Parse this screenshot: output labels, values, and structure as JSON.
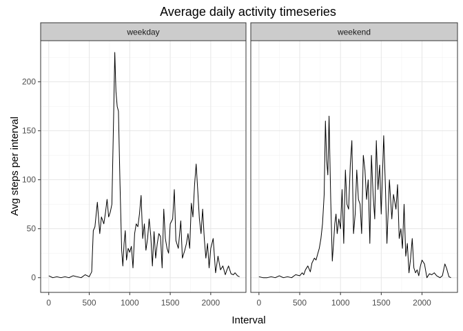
{
  "chart_data": {
    "type": "line",
    "title": "Average daily activity timeseries",
    "xlabel": "Interval",
    "ylabel": "Avg steps per interval",
    "xlim": [
      -100,
      2435
    ],
    "ylim": [
      -15,
      242
    ],
    "x_ticks": [
      0,
      500,
      1000,
      1500,
      2000
    ],
    "y_ticks": [
      0,
      50,
      100,
      150,
      200
    ],
    "grid": true,
    "line_color": "#000000",
    "facets": [
      {
        "label": "weekday",
        "x": [
          0,
          50,
          100,
          150,
          200,
          250,
          300,
          350,
          400,
          450,
          500,
          530,
          550,
          570,
          600,
          630,
          650,
          680,
          700,
          720,
          740,
          760,
          780,
          800,
          815,
          830,
          845,
          860,
          880,
          900,
          915,
          930,
          945,
          960,
          980,
          1000,
          1020,
          1040,
          1060,
          1080,
          1100,
          1120,
          1140,
          1160,
          1180,
          1200,
          1220,
          1240,
          1260,
          1280,
          1300,
          1320,
          1340,
          1360,
          1380,
          1400,
          1420,
          1440,
          1460,
          1480,
          1500,
          1530,
          1550,
          1570,
          1600,
          1630,
          1650,
          1680,
          1700,
          1720,
          1740,
          1760,
          1780,
          1800,
          1820,
          1840,
          1860,
          1880,
          1900,
          1920,
          1940,
          1960,
          1980,
          2000,
          2030,
          2060,
          2090,
          2120,
          2150,
          2180,
          2200,
          2220,
          2250,
          2280,
          2300,
          2330,
          2355
        ],
        "y": [
          2,
          0,
          1,
          0,
          1,
          0,
          2,
          1,
          0,
          3,
          1,
          6,
          48,
          52,
          77,
          45,
          62,
          55,
          66,
          80,
          62,
          67,
          75,
          160,
          230,
          190,
          175,
          170,
          95,
          28,
          12,
          35,
          48,
          18,
          30,
          26,
          32,
          10,
          45,
          55,
          52,
          65,
          84,
          40,
          55,
          28,
          40,
          60,
          42,
          12,
          47,
          20,
          35,
          45,
          42,
          10,
          70,
          40,
          30,
          25,
          55,
          60,
          90,
          38,
          30,
          58,
          20,
          28,
          35,
          45,
          30,
          76,
          62,
          95,
          116,
          88,
          60,
          45,
          70,
          40,
          20,
          35,
          10,
          30,
          40,
          5,
          22,
          8,
          12,
          3,
          8,
          12,
          4,
          3,
          5,
          2,
          1
        ]
      },
      {
        "label": "weekend",
        "x": [
          0,
          50,
          100,
          150,
          200,
          250,
          300,
          350,
          400,
          450,
          500,
          530,
          550,
          570,
          600,
          630,
          650,
          680,
          700,
          720,
          740,
          760,
          780,
          800,
          815,
          830,
          845,
          860,
          880,
          900,
          915,
          930,
          945,
          960,
          980,
          1000,
          1020,
          1040,
          1060,
          1080,
          1100,
          1120,
          1140,
          1160,
          1180,
          1200,
          1220,
          1240,
          1260,
          1280,
          1300,
          1320,
          1340,
          1360,
          1380,
          1400,
          1420,
          1440,
          1460,
          1480,
          1500,
          1530,
          1550,
          1570,
          1600,
          1630,
          1650,
          1680,
          1700,
          1720,
          1740,
          1760,
          1780,
          1800,
          1820,
          1840,
          1860,
          1880,
          1900,
          1920,
          1940,
          1960,
          1980,
          2000,
          2030,
          2060,
          2090,
          2120,
          2150,
          2180,
          2200,
          2220,
          2250,
          2280,
          2300,
          2330,
          2355
        ],
        "y": [
          1,
          0,
          0,
          1,
          0,
          2,
          0,
          1,
          0,
          3,
          2,
          5,
          3,
          8,
          12,
          6,
          15,
          20,
          18,
          24,
          30,
          40,
          55,
          85,
          160,
          120,
          105,
          165,
          80,
          17,
          35,
          55,
          65,
          45,
          60,
          50,
          90,
          35,
          110,
          75,
          70,
          115,
          140,
          45,
          65,
          110,
          80,
          75,
          45,
          125,
          110,
          80,
          100,
          35,
          125,
          85,
          60,
          140,
          90,
          115,
          65,
          145,
          95,
          35,
          100,
          60,
          85,
          70,
          95,
          40,
          50,
          30,
          75,
          22,
          35,
          5,
          20,
          40,
          10,
          5,
          8,
          2,
          12,
          18,
          14,
          0,
          4,
          3,
          5,
          2,
          1,
          0,
          2,
          14,
          10,
          1,
          0
        ]
      }
    ]
  }
}
